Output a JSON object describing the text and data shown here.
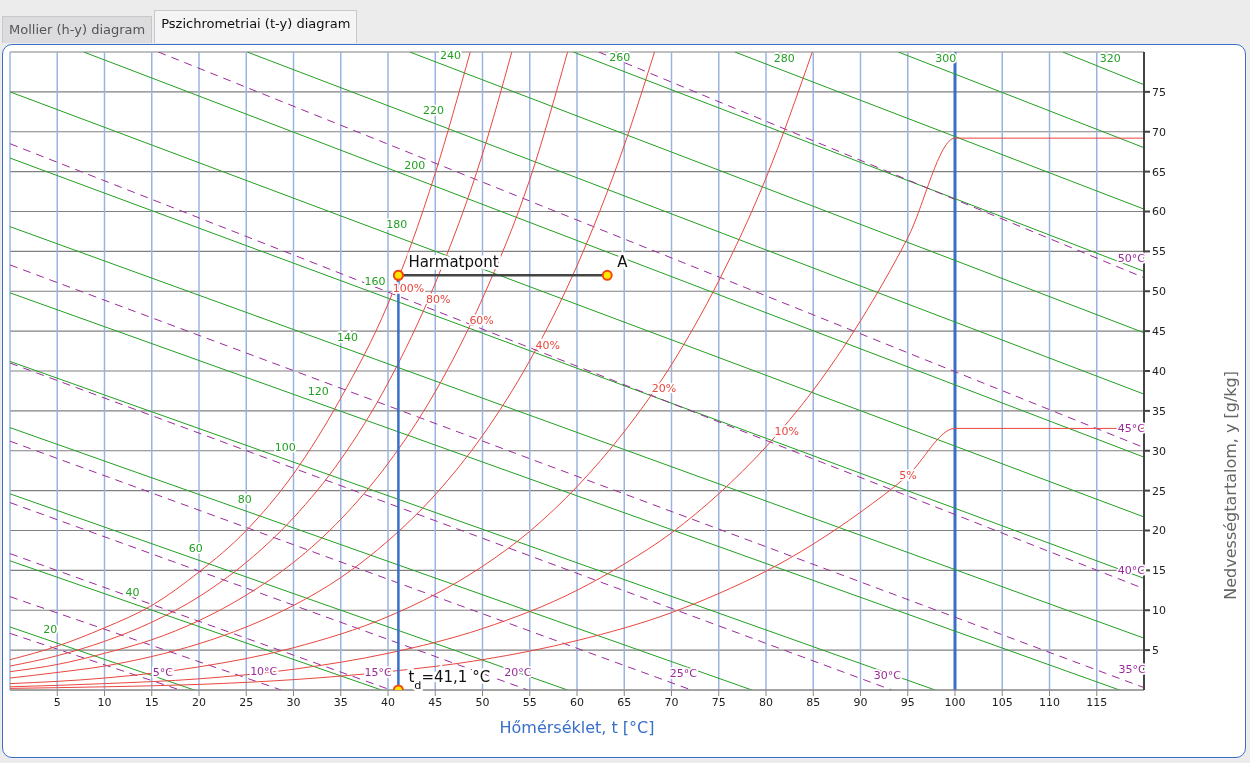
{
  "chart_data": {
    "type": "line",
    "xlabel": "Hőmérséklet, t [°C]",
    "ylabel": "Nedvességtartalom, y [g/kg]",
    "xlim": [
      0,
      120
    ],
    "ylim": [
      0,
      80
    ],
    "xticks": [
      5,
      10,
      15,
      20,
      25,
      30,
      35,
      40,
      45,
      50,
      55,
      60,
      65,
      70,
      75,
      80,
      85,
      90,
      95,
      100,
      105,
      110,
      115
    ],
    "yticks": [
      5,
      10,
      15,
      20,
      25,
      30,
      35,
      40,
      45,
      50,
      55,
      60,
      65,
      70,
      75
    ],
    "grid": true,
    "marker": "none",
    "line_style": "solid",
    "series": [
      {
        "color": "#22a022",
        "x": [
          0,
          19.5
        ],
        "values": [
          7.9,
          0
        ]
      },
      {
        "color": "#22a022",
        "x": [
          0,
          39.3
        ],
        "values": [
          16.2,
          0
        ]
      },
      {
        "color": "#22a022",
        "x": [
          0,
          59.0
        ],
        "values": [
          24.6,
          0
        ]
      },
      {
        "color": "#22a022",
        "x": [
          0,
          78.5
        ],
        "values": [
          32.9,
          0
        ]
      },
      {
        "color": "#22a022",
        "x": [
          0,
          97.9
        ],
        "values": [
          41.2,
          0
        ]
      },
      {
        "color": "#22a022",
        "x": [
          0,
          117.4
        ],
        "values": [
          49.8,
          0
        ]
      },
      {
        "color": "#22a022",
        "x": [
          0,
          120
        ],
        "values": [
          58.1,
          6.5
        ]
      },
      {
        "color": "#22a022",
        "x": [
          0,
          120
        ],
        "values": [
          66.7,
          14.0
        ]
      },
      {
        "color": "#22a022",
        "x": [
          0,
          120
        ],
        "values": [
          75.0,
          21.7
        ]
      },
      {
        "color": "#22a022",
        "x": [
          7.8,
          120
        ],
        "values": [
          80,
          29.2
        ]
      },
      {
        "color": "#22a022",
        "x": [
          25.1,
          120
        ],
        "values": [
          80,
          37.1
        ]
      },
      {
        "color": "#22a022",
        "x": [
          42.3,
          120
        ],
        "values": [
          80,
          44.8
        ]
      },
      {
        "color": "#22a022",
        "x": [
          59.6,
          120
        ],
        "values": [
          80,
          52.5
        ]
      },
      {
        "color": "#22a022",
        "x": [
          76.7,
          120
        ],
        "values": [
          80,
          60.3
        ]
      },
      {
        "color": "#22a022",
        "x": [
          94.0,
          120
        ],
        "values": [
          80,
          68.0
        ]
      },
      {
        "color": "#22a022",
        "x": [
          111.4,
          120
        ],
        "values": [
          80,
          75.9
        ]
      },
      {
        "color": "#9b2a9b",
        "line_style": "dashed",
        "x": [
          0,
          18.0
        ],
        "values": [
          7.1,
          0
        ]
      },
      {
        "color": "#9b2a9b",
        "line_style": "dashed",
        "x": [
          0,
          28.7
        ],
        "values": [
          11.7,
          0
        ]
      },
      {
        "color": "#9b2a9b",
        "line_style": "dashed",
        "x": [
          0,
          40.3
        ],
        "values": [
          17.1,
          0
        ]
      },
      {
        "color": "#9b2a9b",
        "line_style": "dashed",
        "x": [
          0,
          54.8
        ],
        "values": [
          23.5,
          0
        ]
      },
      {
        "color": "#9b2a9b",
        "line_style": "dashed",
        "x": [
          0,
          72.1
        ],
        "values": [
          31.2,
          0
        ]
      },
      {
        "color": "#9b2a9b",
        "line_style": "dashed",
        "x": [
          0,
          93.3
        ],
        "values": [
          41.0,
          0
        ]
      },
      {
        "color": "#9b2a9b",
        "line_style": "dashed",
        "x": [
          0,
          120
        ],
        "values": [
          53.3,
          0.3
        ]
      },
      {
        "color": "#9b2a9b",
        "line_style": "dashed",
        "x": [
          0,
          120
        ],
        "values": [
          68.5,
          12.7
        ]
      },
      {
        "color": "#9b2a9b",
        "line_style": "dashed",
        "x": [
          15.7,
          120
        ],
        "values": [
          80,
          30.4
        ]
      },
      {
        "color": "#9b2a9b",
        "line_style": "dashed",
        "x": [
          62.3,
          120
        ],
        "values": [
          80,
          51.7
        ]
      },
      {
        "color": "#e8473f",
        "x": [
          0,
          5,
          10,
          15,
          20,
          25,
          30,
          35,
          40,
          45,
          48.7
        ],
        "values": [
          3.8,
          5.5,
          7.8,
          10.6,
          14.8,
          20.0,
          27.1,
          36.6,
          48.4,
          64.8,
          80
        ]
      },
      {
        "color": "#e8473f",
        "x": [
          0,
          5,
          10,
          15,
          20,
          25,
          30,
          35,
          40,
          45,
          50,
          53.1
        ],
        "values": [
          3.0,
          4.3,
          6.1,
          8.5,
          11.7,
          16.0,
          21.6,
          28.9,
          38.5,
          51.0,
          67.2,
          80
        ]
      },
      {
        "color": "#e8473f",
        "x": [
          0,
          5,
          10,
          15,
          20,
          25,
          30,
          35,
          40,
          45,
          50,
          55,
          59
        ],
        "values": [
          2.3,
          3.2,
          4.6,
          6.3,
          8.7,
          11.9,
          16.0,
          21.4,
          28.4,
          37.4,
          49.1,
          64.0,
          80
        ]
      },
      {
        "color": "#e8473f",
        "x": [
          0,
          5,
          10,
          15,
          20,
          25,
          30,
          35,
          40,
          45,
          50,
          55,
          60,
          65,
          68.2
        ],
        "values": [
          1.5,
          2.2,
          3.0,
          4.2,
          5.8,
          7.9,
          10.6,
          14.1,
          18.7,
          24.5,
          31.9,
          41.3,
          53.2,
          68.3,
          80
        ]
      },
      {
        "color": "#e8473f",
        "x": [
          0,
          10,
          20,
          30,
          40,
          45,
          50,
          55,
          60,
          65,
          70,
          75,
          80,
          84.9
        ],
        "values": [
          0.8,
          1.5,
          2.9,
          5.3,
          9.2,
          12.0,
          15.5,
          19.9,
          25.5,
          32.4,
          40.8,
          51.3,
          64.2,
          80
        ]
      },
      {
        "color": "#e8473f",
        "x": [
          0,
          10,
          20,
          30,
          40,
          50,
          60,
          65,
          70,
          75,
          80,
          85,
          90,
          95,
          100,
          120
        ],
        "values": [
          0.4,
          0.8,
          1.4,
          2.6,
          4.6,
          7.7,
          12.5,
          15.8,
          19.7,
          24.6,
          30.5,
          37.6,
          46.3,
          56.7,
          69.2,
          69.2
        ]
      },
      {
        "color": "#e8473f",
        "x": [
          0,
          10,
          20,
          30,
          40,
          50,
          60,
          70,
          75,
          80,
          85,
          90,
          95,
          100,
          120
        ],
        "values": [
          0.2,
          0.4,
          0.7,
          1.3,
          2.3,
          3.8,
          6.2,
          9.7,
          12.1,
          14.9,
          18.3,
          22.3,
          26.9,
          32.8,
          32.8
        ]
      },
      {
        "color": "#3a6fc8",
        "marker": "circle",
        "x": [
          41.1,
          41.1
        ],
        "values": [
          0,
          52.0
        ]
      },
      {
        "color": "#444444",
        "marker": "circle",
        "x": [
          41.1,
          63.2
        ],
        "values": [
          52.0,
          52.0
        ]
      }
    ],
    "ref_lines": [
      {
        "axis": "x",
        "value": 100,
        "color": "#3a6fc8"
      }
    ],
    "annotations": [
      "Mollier (h-y) diagram",
      "Pszichrometriai (t-y) diagram",
      {
        "text": "Harmatpont",
        "x": 41.1,
        "y": 52.0
      },
      {
        "text": "A",
        "x": 63.2,
        "y": 52.0
      },
      {
        "text": "t$_{d}$=41,1 °C",
        "x": 41.1,
        "y": 0
      },
      {
        "text": "100%",
        "x": 40.3,
        "y": 49.4
      },
      {
        "text": "80%",
        "x": 43.8,
        "y": 48.0
      },
      {
        "text": "60%",
        "x": 48.4,
        "y": 45.4
      },
      {
        "text": "40%",
        "x": 55.4,
        "y": 42.3
      },
      {
        "text": "20%",
        "x": 67.7,
        "y": 36.9
      },
      {
        "text": "10%",
        "x": 80.7,
        "y": 31.5
      },
      {
        "text": "5%",
        "x": 93.9,
        "y": 25.9
      },
      {
        "text": "20",
        "x": 3.3,
        "y": 6.6
      },
      {
        "text": "40",
        "x": 12.0,
        "y": 11.3
      },
      {
        "text": "60",
        "x": 18.7,
        "y": 16.8
      },
      {
        "text": "80",
        "x": 23.9,
        "y": 22.9
      },
      {
        "text": "100",
        "x": 27.8,
        "y": 29.5
      },
      {
        "text": "120",
        "x": 31.3,
        "y": 36.5
      },
      {
        "text": "140",
        "x": 34.4,
        "y": 43.3
      },
      {
        "text": "160",
        "x": 37.3,
        "y": 50.3
      },
      {
        "text": "180",
        "x": 39.6,
        "y": 57.4
      },
      {
        "text": "200",
        "x": 41.5,
        "y": 64.8
      },
      {
        "text": "220",
        "x": 43.5,
        "y": 71.7
      },
      {
        "text": "240",
        "x": 45.3,
        "y": 78.6
      },
      {
        "text": "260",
        "x": 63.2,
        "y": 78.4
      },
      {
        "text": "280",
        "x": 80.6,
        "y": 78.2
      },
      {
        "text": "300",
        "x": 97.7,
        "y": 78.3
      },
      {
        "text": "320",
        "x": 115.1,
        "y": 78.2
      },
      {
        "text": "5°C",
        "x": 14.9,
        "y": 1.2
      },
      {
        "text": "10°C",
        "x": 25.2,
        "y": 1.4
      },
      {
        "text": "15°C",
        "x": 37.3,
        "y": 1.3
      },
      {
        "text": "20°C",
        "x": 52.1,
        "y": 1.2
      },
      {
        "text": "25°C",
        "x": 69.6,
        "y": 1.1
      },
      {
        "text": "30°C",
        "x": 91.2,
        "y": 0.9
      },
      {
        "text": "35°C",
        "x": 117.1,
        "y": 1.6
      },
      {
        "text": "40°C",
        "x": 117.0,
        "y": 14.1
      },
      {
        "text": "45°C",
        "x": 117.0,
        "y": 31.8
      },
      {
        "text": "50°C",
        "x": 117.0,
        "y": 53.2
      }
    ]
  }
}
